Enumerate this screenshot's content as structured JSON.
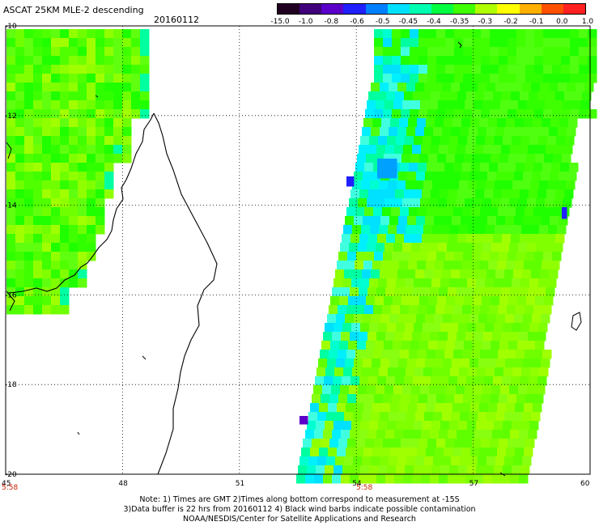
{
  "header": {
    "title": "ASCAT 25KM MLE-2 descending",
    "date": "20160112"
  },
  "colorbar": {
    "labels": [
      "-15.0",
      "-1.0",
      "-0.8",
      "-0.6",
      "-0.5",
      "-0.45",
      "-0.4",
      "-0.35",
      "-0.3",
      "-0.2",
      "-0.1",
      "0.0",
      "1.0"
    ],
    "colors": [
      "#200020",
      "#40007a",
      "#5a00c8",
      "#2020ff",
      "#0080ff",
      "#00e0ff",
      "#00ffb0",
      "#00ff40",
      "#40ff00",
      "#b0ff00",
      "#ffff00",
      "#ffb000",
      "#ff5000",
      "#ff2020"
    ]
  },
  "axes": {
    "lon_ticks": [
      "45",
      "48",
      "51",
      "54",
      "57",
      "60"
    ],
    "lat_ticks": [
      "-10",
      "-12",
      "-14",
      "-16",
      "-18",
      "-20"
    ]
  },
  "times": {
    "left": "5:58",
    "center": "5:58"
  },
  "note": {
    "line1": "Note: 1) Times are GMT 2)Times along bottom correspond to measurement at -15S",
    "line2": "3)Data buffer is 22 hrs from 20160112 4) Black wind barbs indicate possible contamination",
    "line3": "NOAA/NESDIS/Center for Satellite Applications and Research"
  },
  "map_data": {
    "lon_range": [
      45,
      60
    ],
    "lat_range": [
      -10,
      -20
    ],
    "swaths": [
      "west swath 45-48E",
      "east swath 52.5-60E"
    ]
  }
}
